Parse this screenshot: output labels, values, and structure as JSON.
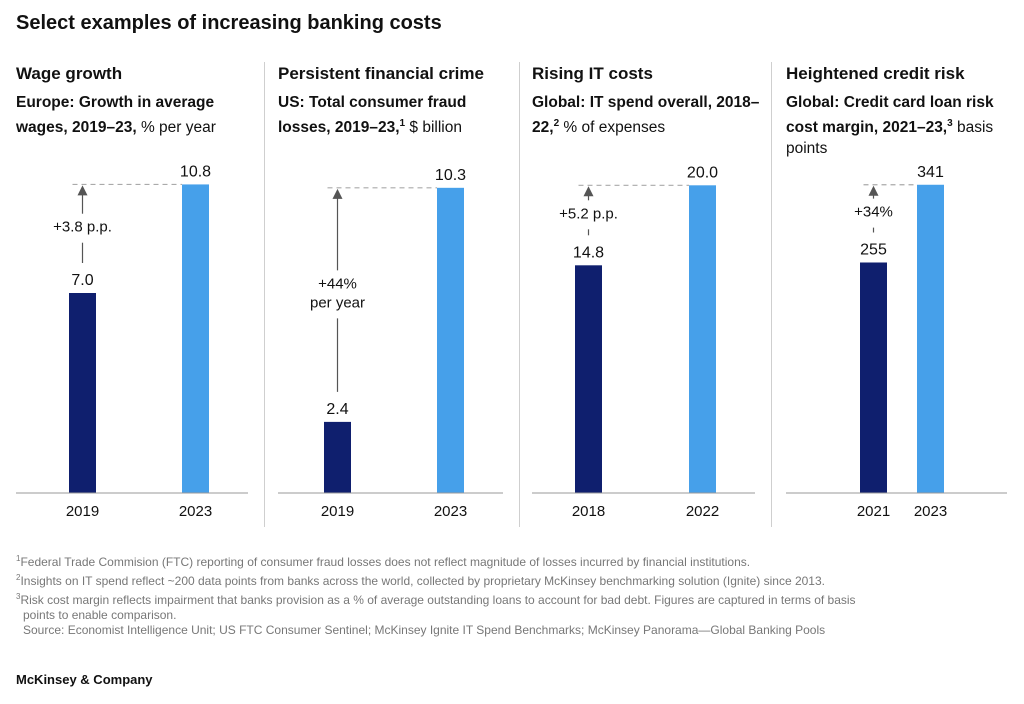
{
  "title": "Select examples of increasing banking costs",
  "colors": {
    "dark": "#0f1f6e",
    "light": "#46a0ea",
    "axis": "#999999",
    "text": "#111111"
  },
  "chart_data": [
    {
      "type": "bar",
      "panel_title": "Wage growth",
      "subtitle_bold": "Europe: Growth in average wages, 2019–23,",
      "subtitle_sup": "",
      "subtitle_rest": " % per year",
      "categories": [
        "2019",
        "2023"
      ],
      "values": [
        7.0,
        10.8
      ],
      "value_labels": [
        "7.0",
        "10.8"
      ],
      "annotation": [
        "+3.8 p.p."
      ],
      "ylim": [
        0,
        11.2
      ]
    },
    {
      "type": "bar",
      "panel_title": "Persistent financial crime",
      "subtitle_bold": "US: Total consumer fraud losses, 2019–23,",
      "subtitle_sup": "1",
      "subtitle_rest": " $ billion",
      "categories": [
        "2019",
        "2023"
      ],
      "values": [
        2.4,
        10.3
      ],
      "value_labels": [
        "2.4",
        "10.3"
      ],
      "annotation": [
        "+44%",
        "per year"
      ],
      "ylim": [
        0,
        10.8
      ]
    },
    {
      "type": "bar",
      "panel_title": "Rising IT costs",
      "subtitle_bold": "Global: IT spend overall, 2018–22,",
      "subtitle_sup": "2",
      "subtitle_rest": " % of expenses",
      "categories": [
        "2018",
        "2022"
      ],
      "values": [
        14.8,
        20.0
      ],
      "value_labels": [
        "14.8",
        "20.0"
      ],
      "annotation": [
        "+5.2 p.p."
      ],
      "ylim": [
        0,
        20.8
      ]
    },
    {
      "type": "bar",
      "panel_title": "Heightened credit risk",
      "subtitle_bold": "Global: Credit card loan risk cost margin, 2021–23,",
      "subtitle_sup": "3",
      "subtitle_rest": " basis points",
      "categories": [
        "2021",
        "2023"
      ],
      "values": [
        255,
        341
      ],
      "value_labels": [
        "255",
        "341"
      ],
      "annotation": [
        "+34%"
      ],
      "ylim": [
        0,
        354
      ]
    }
  ],
  "footnotes": [
    {
      "sup": "1",
      "text": "Federal Trade Commision (FTC) reporting of consumer fraud losses does not reflect magnitude of losses incurred by financial institutions."
    },
    {
      "sup": "2",
      "text": "Insights on IT spend reflect ~200 data points from banks across the world, collected by proprietary McKinsey benchmarking solution (Ignite) since 2013."
    },
    {
      "sup": "3",
      "text": "Risk cost margin reflects impairment that banks provision as a % of average outstanding loans to account for bad debt. Figures are captured in terms of basis"
    },
    {
      "sup": "",
      "text": "points to enable comparison."
    }
  ],
  "source": "Source: Economist Intelligence Unit; US FTC Consumer Sentinel; McKinsey Ignite IT Spend Benchmarks; McKinsey Panorama—Global Banking Pools",
  "brand": "McKinsey & Company"
}
